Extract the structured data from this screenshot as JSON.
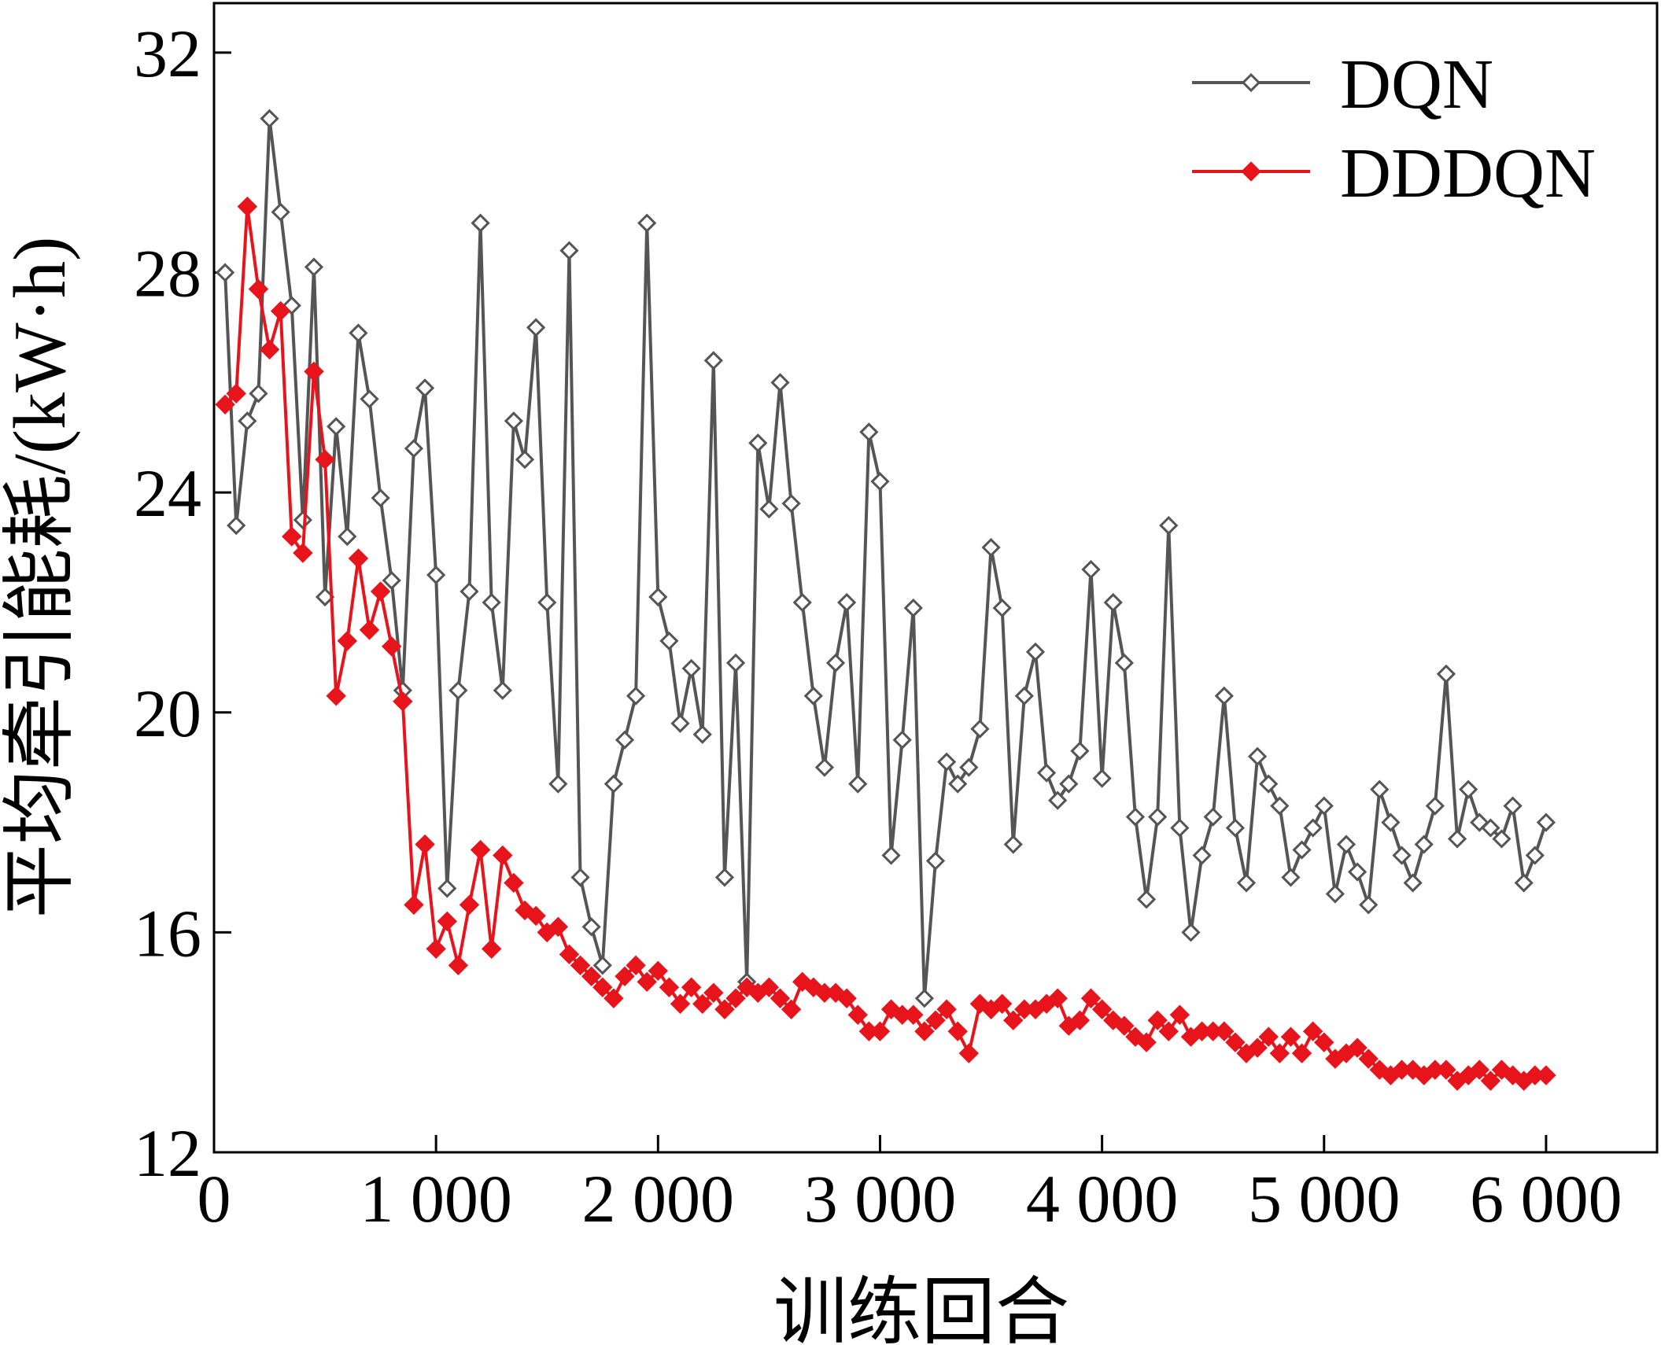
{
  "chart_data": {
    "type": "line",
    "x_label": "训练回合",
    "y_label": "平均牵引能耗/(kW·h)",
    "xlim": [
      0,
      6500
    ],
    "ylim": [
      12,
      32.9
    ],
    "xticks": [
      0,
      {
        "value": 1000,
        "label": "1 000"
      },
      {
        "value": 2000,
        "label": "2 000"
      },
      {
        "value": 3000,
        "label": "3 000"
      },
      {
        "value": 4000,
        "label": "4 000"
      },
      {
        "value": 5000,
        "label": "5 000"
      },
      {
        "value": 6000,
        "label": "6 000"
      }
    ],
    "yticks": [
      12,
      16,
      20,
      24,
      28,
      32
    ],
    "legend": "upper right",
    "x": [
      50,
      100,
      150,
      200,
      250,
      300,
      350,
      400,
      450,
      500,
      550,
      600,
      650,
      700,
      750,
      800,
      850,
      900,
      950,
      1000,
      1050,
      1100,
      1150,
      1200,
      1250,
      1300,
      1350,
      1400,
      1450,
      1500,
      1550,
      1600,
      1650,
      1700,
      1750,
      1800,
      1850,
      1900,
      1950,
      2000,
      2050,
      2100,
      2150,
      2200,
      2250,
      2300,
      2350,
      2400,
      2450,
      2500,
      2550,
      2600,
      2650,
      2700,
      2750,
      2800,
      2850,
      2900,
      2950,
      3000,
      3050,
      3100,
      3150,
      3200,
      3250,
      3300,
      3350,
      3400,
      3450,
      3500,
      3550,
      3600,
      3650,
      3700,
      3750,
      3800,
      3850,
      3900,
      3950,
      4000,
      4050,
      4100,
      4150,
      4200,
      4250,
      4300,
      4350,
      4400,
      4450,
      4500,
      4550,
      4600,
      4650,
      4700,
      4750,
      4800,
      4850,
      4900,
      4950,
      5000,
      5050,
      5100,
      5150,
      5200,
      5250,
      5300,
      5350,
      5400,
      5450,
      5500,
      5550,
      5600,
      5650,
      5700,
      5750,
      5800,
      5850,
      5900,
      5950,
      6000
    ],
    "series": [
      {
        "name": "DQN",
        "color": "#555555",
        "marker": "open-diamond",
        "values": [
          28.0,
          23.4,
          25.3,
          25.8,
          30.8,
          29.1,
          27.4,
          23.5,
          28.1,
          22.1,
          25.2,
          23.2,
          26.9,
          25.7,
          23.9,
          22.4,
          20.4,
          24.8,
          25.9,
          22.5,
          16.8,
          20.4,
          22.2,
          28.9,
          22.0,
          20.4,
          25.3,
          24.6,
          27.0,
          22.0,
          18.7,
          28.4,
          17.0,
          16.1,
          15.4,
          18.7,
          19.5,
          20.3,
          28.9,
          22.1,
          21.3,
          19.8,
          20.8,
          19.6,
          26.4,
          17.0,
          20.9,
          15.1,
          24.9,
          23.7,
          26.0,
          23.8,
          22.0,
          20.3,
          19.0,
          20.9,
          22.0,
          18.7,
          25.1,
          24.2,
          17.4,
          19.5,
          21.9,
          14.8,
          17.3,
          19.1,
          18.7,
          19.0,
          19.7,
          23.0,
          21.9,
          17.6,
          20.3,
          21.1,
          18.9,
          18.4,
          18.7,
          19.3,
          22.6,
          18.8,
          22.0,
          20.9,
          18.1,
          16.6,
          18.1,
          23.4,
          17.9,
          16.0,
          17.4,
          18.1,
          20.3,
          17.9,
          16.9,
          19.2,
          18.7,
          18.3,
          17.0,
          17.5,
          17.9,
          18.3,
          16.7,
          17.6,
          17.1,
          16.5,
          18.6,
          18.0,
          17.4,
          16.9,
          17.6,
          18.3,
          20.7,
          17.7,
          18.6,
          18.0,
          17.9,
          17.7,
          18.3,
          16.9,
          17.4,
          18.0
        ]
      },
      {
        "name": "DDDQN",
        "color": "#e8141c",
        "marker": "filled-diamond",
        "values": [
          25.6,
          25.8,
          29.2,
          27.7,
          26.6,
          27.3,
          23.2,
          22.9,
          26.2,
          24.6,
          20.3,
          21.3,
          22.8,
          21.5,
          22.2,
          21.2,
          20.2,
          16.5,
          17.6,
          15.7,
          16.2,
          15.4,
          16.5,
          17.5,
          15.7,
          17.4,
          16.9,
          16.4,
          16.3,
          16.0,
          16.1,
          15.6,
          15.4,
          15.2,
          15.0,
          14.8,
          15.2,
          15.4,
          15.1,
          15.3,
          15.0,
          14.7,
          15.0,
          14.7,
          14.9,
          14.6,
          14.8,
          15.0,
          14.9,
          15.0,
          14.8,
          14.6,
          15.1,
          15.0,
          14.9,
          14.9,
          14.8,
          14.5,
          14.2,
          14.2,
          14.6,
          14.5,
          14.5,
          14.2,
          14.4,
          14.6,
          14.2,
          13.8,
          14.7,
          14.6,
          14.7,
          14.4,
          14.6,
          14.6,
          14.7,
          14.8,
          14.3,
          14.4,
          14.8,
          14.6,
          14.4,
          14.3,
          14.1,
          14.0,
          14.4,
          14.2,
          14.5,
          14.1,
          14.2,
          14.2,
          14.2,
          14.0,
          13.8,
          13.9,
          14.1,
          13.8,
          14.1,
          13.8,
          14.2,
          14.0,
          13.7,
          13.8,
          13.9,
          13.7,
          13.5,
          13.4,
          13.5,
          13.5,
          13.4,
          13.5,
          13.5,
          13.3,
          13.4,
          13.5,
          13.3,
          13.5,
          13.4,
          13.3,
          13.4,
          13.4
        ]
      }
    ]
  }
}
